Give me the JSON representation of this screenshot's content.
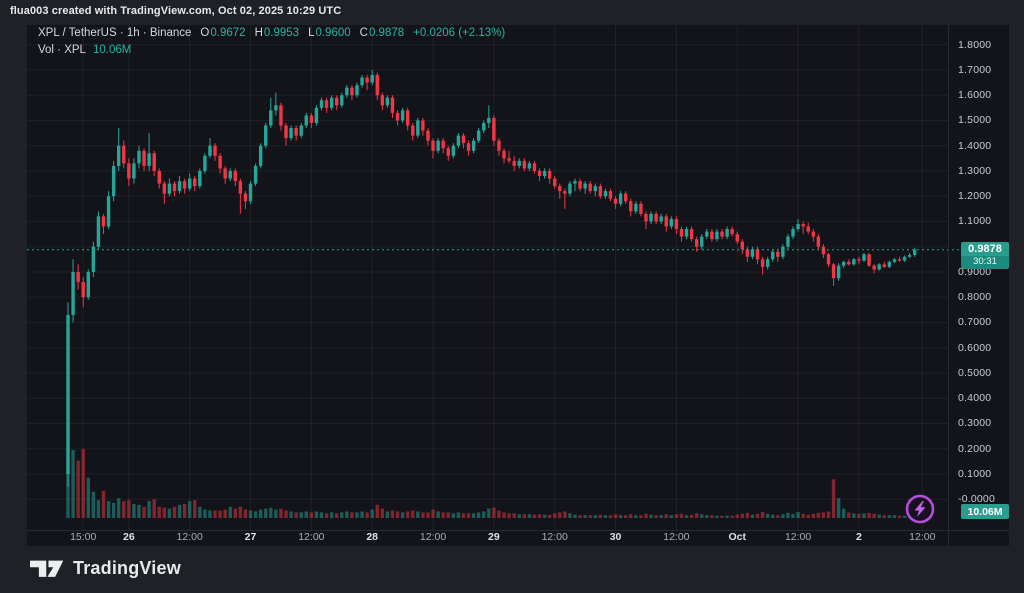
{
  "attribution": "flua003 created with TradingView.com, Oct 02, 2025 10:29 UTC",
  "legend": {
    "title": "XPL / TetherUS · 1h · Binance",
    "ohlc_items": [
      {
        "k": "O",
        "v": "0.9672"
      },
      {
        "k": "H",
        "v": "0.9953"
      },
      {
        "k": "L",
        "v": "0.9600"
      },
      {
        "k": "C",
        "v": "0.9878"
      }
    ],
    "change": "+0.0206 (+2.13%)",
    "vol_label": "Vol · XPL",
    "vol_value": "10.06M"
  },
  "footer": {
    "logo_text": "TradingView"
  },
  "colors": {
    "up": "#26a69a",
    "down": "#f23645",
    "flag_bg": "#2a9d8f",
    "countdown_bg": "#1d8a7e",
    "accent_purple": "#b44fd9",
    "grid": "rgba(250,250,255,0.055)"
  },
  "chart_data": {
    "type": "candlestick",
    "title": "XPL / TetherUS · 1h · Binance",
    "symbol": "XPL / TetherUS",
    "interval": "1h",
    "exchange": "Binance",
    "last_price": "0.9878",
    "countdown": "30:31",
    "volume_display": "10.06M",
    "volume_unit": "M",
    "y_axis": {
      "min": 0.0,
      "max": 1.8,
      "step": 0.1,
      "hidden_label": 1.0,
      "grid": true
    },
    "x_ticks": [
      {
        "label": "15:00",
        "i": 3,
        "major": false
      },
      {
        "label": "26",
        "i": 12,
        "major": true
      },
      {
        "label": "12:00",
        "i": 24,
        "major": false
      },
      {
        "label": "27",
        "i": 36,
        "major": true
      },
      {
        "label": "12:00",
        "i": 48,
        "major": false
      },
      {
        "label": "28",
        "i": 60,
        "major": true
      },
      {
        "label": "12:00",
        "i": 72,
        "major": false
      },
      {
        "label": "29",
        "i": 84,
        "major": true
      },
      {
        "label": "12:00",
        "i": 96,
        "major": false
      },
      {
        "label": "30",
        "i": 108,
        "major": true
      },
      {
        "label": "12:00",
        "i": 120,
        "major": false
      },
      {
        "label": "Oct",
        "i": 132,
        "major": true
      },
      {
        "label": "12:00",
        "i": 144,
        "major": false
      },
      {
        "label": "2",
        "i": 156,
        "major": true
      },
      {
        "label": "12:00",
        "i": 168.5,
        "major": false
      }
    ],
    "candles": [
      [
        0.1,
        0.78,
        0.05,
        0.73,
        320
      ],
      [
        0.73,
        0.95,
        0.7,
        0.9,
        290
      ],
      [
        0.9,
        0.93,
        0.83,
        0.86,
        245
      ],
      [
        0.86,
        0.88,
        0.76,
        0.8,
        295
      ],
      [
        0.8,
        0.91,
        0.79,
        0.9,
        172
      ],
      [
        0.9,
        1.02,
        0.88,
        1.0,
        112
      ],
      [
        1.0,
        1.14,
        0.99,
        1.12,
        76
      ],
      [
        1.12,
        1.13,
        1.05,
        1.08,
        116
      ],
      [
        1.08,
        1.22,
        1.07,
        1.2,
        72
      ],
      [
        1.2,
        1.34,
        1.18,
        1.32,
        64
      ],
      [
        1.32,
        1.47,
        1.3,
        1.4,
        84
      ],
      [
        1.4,
        1.42,
        1.31,
        1.33,
        72
      ],
      [
        1.33,
        1.35,
        1.24,
        1.27,
        76
      ],
      [
        1.27,
        1.35,
        1.25,
        1.33,
        60
      ],
      [
        1.33,
        1.4,
        1.31,
        1.38,
        56
      ],
      [
        1.38,
        1.39,
        1.3,
        1.32,
        48
      ],
      [
        1.32,
        1.45,
        1.3,
        1.37,
        72
      ],
      [
        1.37,
        1.38,
        1.28,
        1.3,
        80
      ],
      [
        1.3,
        1.31,
        1.23,
        1.25,
        48
      ],
      [
        1.25,
        1.26,
        1.17,
        1.21,
        44
      ],
      [
        1.21,
        1.27,
        1.2,
        1.25,
        40
      ],
      [
        1.25,
        1.26,
        1.2,
        1.22,
        48
      ],
      [
        1.22,
        1.28,
        1.21,
        1.26,
        56
      ],
      [
        1.26,
        1.27,
        1.21,
        1.23,
        60
      ],
      [
        1.23,
        1.29,
        1.22,
        1.27,
        72
      ],
      [
        1.27,
        1.28,
        1.22,
        1.24,
        76
      ],
      [
        1.24,
        1.31,
        1.23,
        1.3,
        48
      ],
      [
        1.3,
        1.37,
        1.29,
        1.36,
        36
      ],
      [
        1.36,
        1.43,
        1.35,
        1.4,
        32
      ],
      [
        1.4,
        1.41,
        1.34,
        1.36,
        32
      ],
      [
        1.36,
        1.37,
        1.29,
        1.31,
        32
      ],
      [
        1.31,
        1.32,
        1.25,
        1.27,
        36
      ],
      [
        1.27,
        1.31,
        1.26,
        1.3,
        48
      ],
      [
        1.3,
        1.31,
        1.24,
        1.26,
        40
      ],
      [
        1.26,
        1.27,
        1.13,
        1.21,
        48
      ],
      [
        1.21,
        1.22,
        1.15,
        1.18,
        36
      ],
      [
        1.18,
        1.26,
        1.17,
        1.25,
        32
      ],
      [
        1.25,
        1.33,
        1.24,
        1.32,
        28
      ],
      [
        1.32,
        1.41,
        1.31,
        1.4,
        36
      ],
      [
        1.4,
        1.49,
        1.39,
        1.48,
        40
      ],
      [
        1.48,
        1.59,
        1.47,
        1.54,
        44
      ],
      [
        1.54,
        1.61,
        1.52,
        1.56,
        36
      ],
      [
        1.56,
        1.57,
        1.46,
        1.48,
        40
      ],
      [
        1.48,
        1.49,
        1.4,
        1.43,
        32
      ],
      [
        1.43,
        1.48,
        1.42,
        1.47,
        28
      ],
      [
        1.47,
        1.48,
        1.42,
        1.44,
        24
      ],
      [
        1.44,
        1.49,
        1.43,
        1.48,
        24
      ],
      [
        1.48,
        1.53,
        1.47,
        1.52,
        28
      ],
      [
        1.52,
        1.53,
        1.47,
        1.49,
        24
      ],
      [
        1.49,
        1.56,
        1.48,
        1.55,
        28
      ],
      [
        1.55,
        1.59,
        1.54,
        1.58,
        24
      ],
      [
        1.58,
        1.59,
        1.53,
        1.55,
        20
      ],
      [
        1.55,
        1.6,
        1.54,
        1.59,
        24
      ],
      [
        1.59,
        1.6,
        1.54,
        1.56,
        20
      ],
      [
        1.56,
        1.61,
        1.55,
        1.6,
        24
      ],
      [
        1.6,
        1.64,
        1.59,
        1.63,
        28
      ],
      [
        1.63,
        1.64,
        1.58,
        1.6,
        24
      ],
      [
        1.6,
        1.65,
        1.59,
        1.64,
        24
      ],
      [
        1.64,
        1.68,
        1.63,
        1.67,
        28
      ],
      [
        1.67,
        1.68,
        1.62,
        1.65,
        24
      ],
      [
        1.65,
        1.7,
        1.64,
        1.68,
        36
      ],
      [
        1.68,
        1.69,
        1.58,
        1.6,
        56
      ],
      [
        1.6,
        1.61,
        1.54,
        1.56,
        40
      ],
      [
        1.56,
        1.6,
        1.55,
        1.59,
        28
      ],
      [
        1.59,
        1.6,
        1.51,
        1.53,
        32
      ],
      [
        1.53,
        1.54,
        1.48,
        1.5,
        28
      ],
      [
        1.5,
        1.55,
        1.49,
        1.54,
        24
      ],
      [
        1.54,
        1.55,
        1.46,
        1.48,
        28
      ],
      [
        1.48,
        1.49,
        1.42,
        1.44,
        32
      ],
      [
        1.44,
        1.51,
        1.43,
        1.5,
        28
      ],
      [
        1.5,
        1.51,
        1.44,
        1.46,
        24
      ],
      [
        1.46,
        1.47,
        1.4,
        1.42,
        24
      ],
      [
        1.42,
        1.43,
        1.35,
        1.38,
        36
      ],
      [
        1.38,
        1.43,
        1.37,
        1.42,
        28
      ],
      [
        1.42,
        1.43,
        1.37,
        1.39,
        24
      ],
      [
        1.39,
        1.4,
        1.34,
        1.36,
        24
      ],
      [
        1.36,
        1.41,
        1.35,
        1.4,
        20
      ],
      [
        1.4,
        1.45,
        1.39,
        1.44,
        24
      ],
      [
        1.44,
        1.45,
        1.39,
        1.41,
        20
      ],
      [
        1.41,
        1.42,
        1.36,
        1.38,
        20
      ],
      [
        1.38,
        1.43,
        1.37,
        1.42,
        20
      ],
      [
        1.42,
        1.47,
        1.41,
        1.46,
        24
      ],
      [
        1.46,
        1.5,
        1.45,
        1.49,
        28
      ],
      [
        1.49,
        1.56,
        1.47,
        1.51,
        40
      ],
      [
        1.51,
        1.52,
        1.4,
        1.42,
        44
      ],
      [
        1.42,
        1.43,
        1.36,
        1.38,
        32
      ],
      [
        1.38,
        1.39,
        1.33,
        1.35,
        24
      ],
      [
        1.35,
        1.38,
        1.33,
        1.34,
        20
      ],
      [
        1.34,
        1.36,
        1.3,
        1.32,
        20
      ],
      [
        1.32,
        1.35,
        1.31,
        1.34,
        16
      ],
      [
        1.34,
        1.35,
        1.3,
        1.31,
        16
      ],
      [
        1.31,
        1.34,
        1.3,
        1.33,
        16
      ],
      [
        1.33,
        1.34,
        1.29,
        1.3,
        14
      ],
      [
        1.3,
        1.31,
        1.26,
        1.28,
        16
      ],
      [
        1.28,
        1.31,
        1.27,
        1.3,
        14
      ],
      [
        1.3,
        1.31,
        1.25,
        1.27,
        14
      ],
      [
        1.27,
        1.28,
        1.23,
        1.24,
        20
      ],
      [
        1.24,
        1.25,
        1.19,
        1.22,
        24
      ],
      [
        1.22,
        1.23,
        1.15,
        1.21,
        28
      ],
      [
        1.21,
        1.26,
        1.2,
        1.25,
        20
      ],
      [
        1.25,
        1.27,
        1.22,
        1.26,
        14
      ],
      [
        1.26,
        1.27,
        1.22,
        1.23,
        12
      ],
      [
        1.23,
        1.26,
        1.21,
        1.25,
        12
      ],
      [
        1.25,
        1.26,
        1.21,
        1.22,
        12
      ],
      [
        1.22,
        1.25,
        1.2,
        1.24,
        12
      ],
      [
        1.24,
        1.25,
        1.19,
        1.2,
        14
      ],
      [
        1.2,
        1.23,
        1.19,
        1.22,
        12
      ],
      [
        1.22,
        1.23,
        1.18,
        1.19,
        12
      ],
      [
        1.19,
        1.2,
        1.15,
        1.17,
        16
      ],
      [
        1.17,
        1.22,
        1.16,
        1.21,
        12
      ],
      [
        1.21,
        1.22,
        1.17,
        1.18,
        12
      ],
      [
        1.18,
        1.19,
        1.12,
        1.14,
        16
      ],
      [
        1.14,
        1.18,
        1.13,
        1.17,
        12
      ],
      [
        1.17,
        1.18,
        1.12,
        1.13,
        12
      ],
      [
        1.13,
        1.14,
        1.07,
        1.1,
        18
      ],
      [
        1.1,
        1.14,
        1.09,
        1.13,
        14
      ],
      [
        1.13,
        1.14,
        1.09,
        1.1,
        12
      ],
      [
        1.1,
        1.13,
        1.09,
        1.12,
        12
      ],
      [
        1.12,
        1.13,
        1.06,
        1.08,
        16
      ],
      [
        1.08,
        1.12,
        1.07,
        1.11,
        12
      ],
      [
        1.11,
        1.12,
        1.05,
        1.07,
        16
      ],
      [
        1.07,
        1.08,
        1.02,
        1.04,
        18
      ],
      [
        1.04,
        1.08,
        1.03,
        1.07,
        12
      ],
      [
        1.07,
        1.08,
        1.02,
        1.03,
        14
      ],
      [
        1.03,
        1.04,
        0.98,
        1.0,
        20
      ],
      [
        1.0,
        1.05,
        0.99,
        1.04,
        16
      ],
      [
        1.04,
        1.07,
        1.03,
        1.06,
        12
      ],
      [
        1.06,
        1.07,
        1.02,
        1.03,
        12
      ],
      [
        1.03,
        1.07,
        1.02,
        1.06,
        10
      ],
      [
        1.06,
        1.07,
        1.03,
        1.04,
        10
      ],
      [
        1.04,
        1.08,
        1.03,
        1.07,
        10
      ],
      [
        1.07,
        1.08,
        1.04,
        1.05,
        10
      ],
      [
        1.05,
        1.06,
        1.01,
        1.02,
        14
      ],
      [
        1.02,
        1.03,
        0.97,
        0.99,
        18
      ],
      [
        0.99,
        1.0,
        0.94,
        0.96,
        22
      ],
      [
        0.96,
        1.0,
        0.95,
        0.99,
        14
      ],
      [
        0.99,
        1.0,
        0.93,
        0.95,
        18
      ],
      [
        0.95,
        0.96,
        0.89,
        0.92,
        26
      ],
      [
        0.92,
        0.96,
        0.91,
        0.95,
        18
      ],
      [
        0.95,
        0.99,
        0.94,
        0.98,
        14
      ],
      [
        0.98,
        0.99,
        0.94,
        0.96,
        12
      ],
      [
        0.96,
        1.01,
        0.95,
        1.0,
        16
      ],
      [
        1.0,
        1.05,
        0.99,
        1.04,
        22
      ],
      [
        1.04,
        1.08,
        1.03,
        1.07,
        18
      ],
      [
        1.07,
        1.11,
        1.06,
        1.09,
        26
      ],
      [
        1.09,
        1.1,
        1.05,
        1.08,
        18
      ],
      [
        1.08,
        1.095,
        1.05,
        1.06,
        14
      ],
      [
        1.06,
        1.07,
        1.02,
        1.04,
        18
      ],
      [
        1.04,
        1.05,
        0.99,
        1.0,
        22
      ],
      [
        1.0,
        1.01,
        0.955,
        0.97,
        24
      ],
      [
        0.97,
        0.975,
        0.92,
        0.93,
        28
      ],
      [
        0.93,
        0.935,
        0.845,
        0.875,
        165
      ],
      [
        0.875,
        0.935,
        0.865,
        0.925,
        85
      ],
      [
        0.925,
        0.945,
        0.915,
        0.94,
        40
      ],
      [
        0.94,
        0.95,
        0.925,
        0.93,
        24
      ],
      [
        0.93,
        0.955,
        0.925,
        0.95,
        20
      ],
      [
        0.95,
        0.96,
        0.93,
        0.945,
        18
      ],
      [
        0.945,
        0.975,
        0.94,
        0.97,
        20
      ],
      [
        0.97,
        0.975,
        0.92,
        0.925,
        22
      ],
      [
        0.925,
        0.93,
        0.895,
        0.91,
        18
      ],
      [
        0.91,
        0.935,
        0.905,
        0.93,
        14
      ],
      [
        0.93,
        0.94,
        0.915,
        0.92,
        12
      ],
      [
        0.92,
        0.945,
        0.915,
        0.94,
        12
      ],
      [
        0.94,
        0.955,
        0.935,
        0.95,
        12
      ],
      [
        0.95,
        0.96,
        0.94,
        0.945,
        10
      ],
      [
        0.945,
        0.965,
        0.94,
        0.96,
        10
      ],
      [
        0.96,
        0.975,
        0.955,
        0.967,
        10
      ],
      [
        0.9672,
        0.9953,
        0.96,
        0.9878,
        10.06
      ]
    ]
  }
}
